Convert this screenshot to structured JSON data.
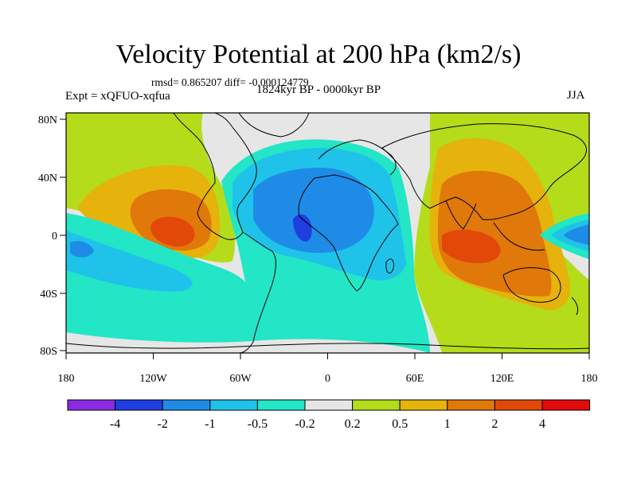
{
  "title": "Velocity Potential at 200 hPa (km2/s)",
  "stats": "rmsd= 0.865207 diff= -0.000124779",
  "experiment": "Expt = xQFUO-xqfua",
  "period": "1824kyr BP - 0000kyr BP",
  "season": "JJA",
  "axes": {
    "lon_labels": [
      "180",
      "120W",
      "60W",
      "0",
      "60E",
      "120E",
      "180"
    ],
    "lat_labels": [
      "80N",
      "40N",
      "0",
      "40S",
      "80S"
    ]
  },
  "colorbar": {
    "labels": [
      "-4",
      "-2",
      "-1",
      "-0.5",
      "-0.2",
      "0.2",
      "0.5",
      "1",
      "2",
      "4"
    ],
    "colors": [
      "#8a2be2",
      "#1e3ee0",
      "#1e8ce6",
      "#1fc3ea",
      "#22e6c6",
      "#e6e6e6",
      "#b4dc1a",
      "#e6b20c",
      "#e0780a",
      "#e24808",
      "#e20a0a"
    ]
  }
}
